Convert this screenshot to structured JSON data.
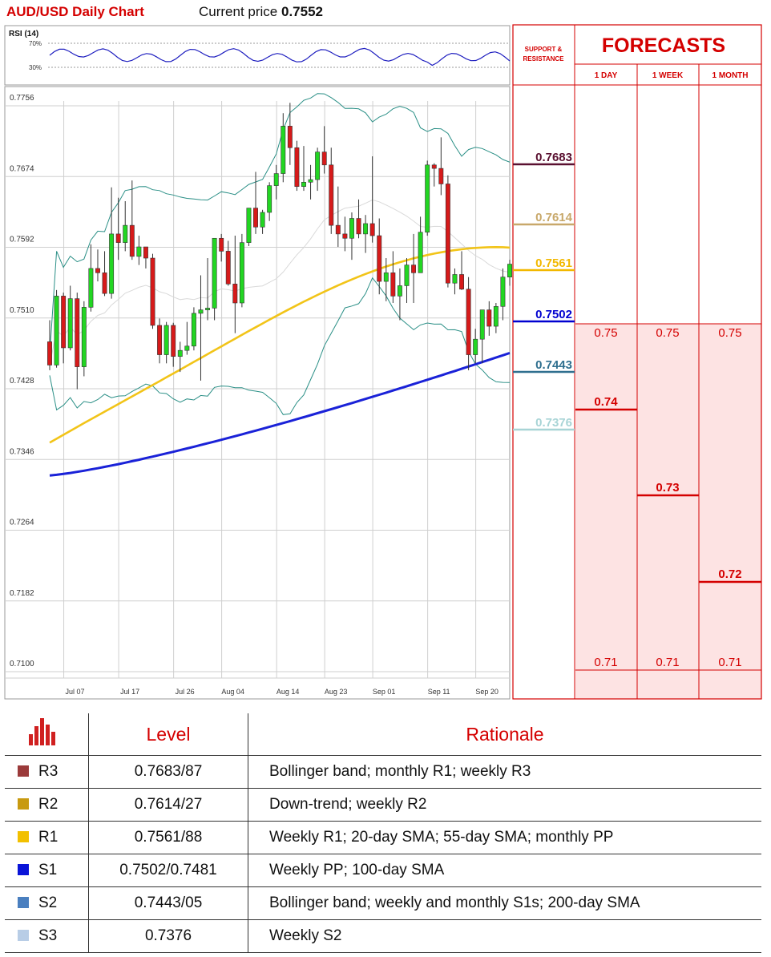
{
  "header": {
    "title": "AUD/USD Daily Chart",
    "current_price_label": "Current price",
    "current_price": "0.7552"
  },
  "rsi": {
    "label": "RSI (14)",
    "upper": "70%",
    "lower": "30%"
  },
  "forecast_panel": {
    "title": "FORECASTS",
    "sr_header": "SUPPORT & RESISTANCE",
    "cols": [
      "1 DAY",
      "1 WEEK",
      "1 MONTH"
    ],
    "top_values": [
      "0.75",
      "0.75",
      "0.75"
    ],
    "mid_values": [
      "0.74",
      "0.73",
      "0.72"
    ],
    "bottom_values": [
      "0.71",
      "0.71",
      "0.71"
    ],
    "levels": [
      {
        "label": "0.7683",
        "value": 0.7683,
        "color": "#5a1030"
      },
      {
        "label": "0.7614",
        "value": 0.7614,
        "color": "#c8a86a"
      },
      {
        "label": "0.7561",
        "value": 0.7561,
        "color": "#f2b800"
      },
      {
        "label": "0.7502",
        "value": 0.7502,
        "color": "#0000d0"
      },
      {
        "label": "0.7443",
        "value": 0.7443,
        "color": "#2f6f8f"
      },
      {
        "label": "0.7376",
        "value": 0.7376,
        "color": "#a8d4d6"
      }
    ]
  },
  "chart_data": {
    "type": "candlestick",
    "title": "AUD/USD Daily Chart",
    "yticks": [
      "0.7756",
      "0.7674",
      "0.7592",
      "0.7510",
      "0.7428",
      "0.7346",
      "0.7264",
      "0.7182",
      "0.7100"
    ],
    "ylim": [
      0.71,
      0.7756
    ],
    "xticks": [
      {
        "label": "Jul 07",
        "index": 1
      },
      {
        "label": "Jul 17",
        "index": 9
      },
      {
        "label": "Jul 26",
        "index": 17
      },
      {
        "label": "Aug 04",
        "index": 24
      },
      {
        "label": "Aug 14",
        "index": 32
      },
      {
        "label": "Aug 23",
        "index": 39
      },
      {
        "label": "Sep 01",
        "index": 46
      },
      {
        "label": "Sep 11",
        "index": 54
      },
      {
        "label": "Sep 20",
        "index": 61
      }
    ],
    "candles": [
      [
        0.7475,
        0.75,
        0.7442,
        0.7448
      ],
      [
        0.7448,
        0.7535,
        0.7445,
        0.7528
      ],
      [
        0.7528,
        0.7532,
        0.745,
        0.7468
      ],
      [
        0.7468,
        0.754,
        0.7465,
        0.7525
      ],
      [
        0.7525,
        0.7532,
        0.742,
        0.7446
      ],
      [
        0.7446,
        0.7522,
        0.7435,
        0.7515
      ],
      [
        0.7515,
        0.7588,
        0.751,
        0.756
      ],
      [
        0.756,
        0.7582,
        0.7545,
        0.7555
      ],
      [
        0.7555,
        0.758,
        0.7528,
        0.7531
      ],
      [
        0.7531,
        0.7654,
        0.7525,
        0.76
      ],
      [
        0.76,
        0.7642,
        0.757,
        0.759
      ],
      [
        0.759,
        0.7638,
        0.758,
        0.761
      ],
      [
        0.761,
        0.7662,
        0.757,
        0.7574
      ],
      [
        0.7574,
        0.7598,
        0.7564,
        0.7585
      ],
      [
        0.7585,
        0.758,
        0.756,
        0.7572
      ],
      [
        0.7572,
        0.7577,
        0.749,
        0.7494
      ],
      [
        0.7494,
        0.7502,
        0.745,
        0.746
      ],
      [
        0.746,
        0.7498,
        0.745,
        0.7494
      ],
      [
        0.7494,
        0.7497,
        0.7446,
        0.7458
      ],
      [
        0.7458,
        0.7475,
        0.744,
        0.7465
      ],
      [
        0.7465,
        0.7498,
        0.746,
        0.747
      ],
      [
        0.747,
        0.7515,
        0.7465,
        0.7508
      ],
      [
        0.7508,
        0.7552,
        0.743,
        0.7512
      ],
      [
        0.7512,
        0.7572,
        0.75,
        0.7514
      ],
      [
        0.7514,
        0.7592,
        0.75,
        0.7595
      ],
      [
        0.7595,
        0.76,
        0.7568,
        0.758
      ],
      [
        0.758,
        0.7592,
        0.754,
        0.7542
      ],
      [
        0.7542,
        0.7598,
        0.7485,
        0.752
      ],
      [
        0.752,
        0.76,
        0.7515,
        0.759
      ],
      [
        0.759,
        0.763,
        0.7586,
        0.763
      ],
      [
        0.763,
        0.7672,
        0.76,
        0.7608
      ],
      [
        0.7608,
        0.7628,
        0.76,
        0.7625
      ],
      [
        0.7625,
        0.766,
        0.7615,
        0.7656
      ],
      [
        0.7656,
        0.768,
        0.764,
        0.767
      ],
      [
        0.767,
        0.774,
        0.766,
        0.7725
      ],
      [
        0.7725,
        0.7752,
        0.768,
        0.77
      ],
      [
        0.77,
        0.7708,
        0.765,
        0.7655
      ],
      [
        0.7655,
        0.7702,
        0.765,
        0.766
      ],
      [
        0.766,
        0.768,
        0.764,
        0.7663
      ],
      [
        0.7663,
        0.77,
        0.765,
        0.7695
      ],
      [
        0.7695,
        0.7725,
        0.767,
        0.768
      ],
      [
        0.768,
        0.77,
        0.76,
        0.761
      ],
      [
        0.761,
        0.7655,
        0.7585,
        0.76
      ],
      [
        0.76,
        0.762,
        0.758,
        0.7595
      ],
      [
        0.7595,
        0.7625,
        0.757,
        0.7618
      ],
      [
        0.7618,
        0.764,
        0.7595,
        0.76
      ],
      [
        0.76,
        0.7622,
        0.7578,
        0.7612
      ],
      [
        0.7612,
        0.769,
        0.759,
        0.7598
      ],
      [
        0.7598,
        0.7618,
        0.753,
        0.7545
      ],
      [
        0.7545,
        0.7572,
        0.7522,
        0.7555
      ],
      [
        0.7555,
        0.758,
        0.752,
        0.7528
      ],
      [
        0.7528,
        0.756,
        0.75,
        0.754
      ],
      [
        0.754,
        0.7572,
        0.752,
        0.7564
      ],
      [
        0.7564,
        0.76,
        0.752,
        0.7555
      ],
      [
        0.7555,
        0.762,
        0.7555,
        0.7602
      ],
      [
        0.7602,
        0.7685,
        0.7598,
        0.768
      ],
      [
        0.768,
        0.7682,
        0.7655,
        0.7676
      ],
      [
        0.7676,
        0.7712,
        0.7645,
        0.7658
      ],
      [
        0.7658,
        0.7668,
        0.7538,
        0.7543
      ],
      [
        0.7543,
        0.756,
        0.753,
        0.7553
      ],
      [
        0.7553,
        0.758,
        0.7535,
        0.7536
      ],
      [
        0.7536,
        0.755,
        0.7442,
        0.746
      ],
      [
        0.746,
        0.749,
        0.745,
        0.7478
      ],
      [
        0.7478,
        0.751,
        0.745,
        0.7512
      ],
      [
        0.7512,
        0.7522,
        0.7482,
        0.7493
      ],
      [
        0.7493,
        0.752,
        0.7485,
        0.7516
      ],
      [
        0.7516,
        0.756,
        0.75,
        0.755
      ],
      [
        0.755,
        0.757,
        0.754,
        0.7565
      ]
    ]
  },
  "table": {
    "headers": [
      "Level",
      "Rationale"
    ],
    "rows": [
      {
        "name": "R3",
        "level": "0.7683/87",
        "rationale": "Bollinger band; monthly R1; weekly R3",
        "color": "#9b3a3a"
      },
      {
        "name": "R2",
        "level": "0.7614/27",
        "rationale": "Down-trend; weekly R2",
        "color": "#c89a10"
      },
      {
        "name": "R1",
        "level": "0.7561/88",
        "rationale": "Weekly R1; 20-day SMA; 55-day SMA; monthly PP",
        "color": "#f2c000"
      },
      {
        "name": "S1",
        "level": "0.7502/0.7481",
        "rationale": "Weekly PP;  100-day SMA",
        "color": "#0a14d8"
      },
      {
        "name": "S2",
        "level": "0.7443/05",
        "rationale": "Bollinger band; weekly and monthly S1s; 200-day SMA",
        "color": "#4a7fbf"
      },
      {
        "name": "S3",
        "level": "0.7376",
        "rationale": "Weekly S2",
        "color": "#b8cde6"
      }
    ]
  }
}
